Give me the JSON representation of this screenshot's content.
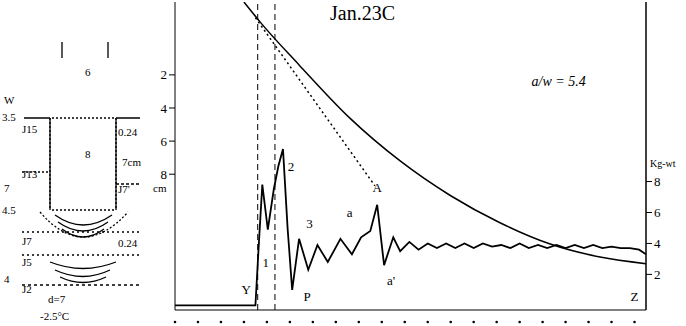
{
  "chart_data": {
    "type": "line",
    "title": "Jan.23C",
    "ylabel": "cm",
    "y2label": "Kg-wt",
    "xlim": [
      0,
      20.5
    ],
    "xticks": [
      0,
      1,
      2,
      3,
      4,
      5,
      6,
      7,
      8,
      9,
      10,
      11,
      12,
      13,
      14,
      15,
      16,
      17,
      18,
      19,
      20
    ],
    "ylim": [
      -2.4,
      16.2
    ],
    "yticks": [
      2,
      4,
      6,
      8
    ],
    "y2lim": [
      -0.3,
      19.6
    ],
    "y2ticks": [
      2,
      4,
      6,
      8
    ],
    "tick_labels": "y",
    "grid": false,
    "series": [
      {
        "axis": "y",
        "color": "#000000",
        "line_style": "solid",
        "x": [
          3.0,
          3.7,
          5.4,
          7.6,
          9.8,
          12.0,
          14.1,
          16.3,
          18.5,
          20.5
        ],
        "values": [
          -2.4,
          -1.2,
          1.4,
          4.6,
          7.2,
          9.3,
          10.9,
          12.2,
          13.0,
          13.4
        ]
      },
      {
        "axis": "y",
        "color": "#000000",
        "line_style": "dotted",
        "x": [
          3.5,
          8.7
        ],
        "values": [
          -1.45,
          8.7
        ]
      },
      {
        "axis": "y2",
        "color": "#000000",
        "line_style": "solid",
        "x": [
          0,
          3.5,
          3.65,
          3.8,
          4.04,
          4.3,
          4.5,
          4.7,
          4.9,
          5.1,
          5.4,
          5.8,
          6.2,
          6.65,
          7.2,
          7.7,
          8.1,
          8.5,
          8.8,
          9.1,
          9.5,
          9.8,
          10.2,
          10.6,
          11.0,
          11.4,
          11.8,
          12.2,
          12.6,
          13.0,
          13.4,
          13.8,
          14.2,
          14.6,
          15.0,
          15.4,
          15.8,
          16.2,
          16.6,
          17.0,
          17.4,
          17.8,
          18.2,
          18.6,
          19.0,
          19.4,
          19.8,
          20.2,
          20.5
        ],
        "values": [
          0,
          0,
          4.0,
          7.8,
          4.9,
          7.5,
          9.0,
          10.1,
          5.0,
          1.0,
          4.3,
          2.3,
          3.9,
          2.8,
          4.3,
          3.3,
          4.4,
          4.8,
          6.5,
          2.6,
          4.4,
          3.5,
          4.1,
          3.6,
          4.0,
          3.7,
          4.0,
          3.7,
          4.0,
          3.7,
          4.0,
          3.8,
          3.9,
          3.7,
          4.0,
          3.7,
          3.9,
          3.7,
          3.9,
          3.7,
          3.9,
          3.7,
          3.9,
          3.7,
          3.8,
          3.7,
          3.7,
          3.6,
          3.3
        ]
      }
    ],
    "reference_lines": [
      3.6,
      4.35
    ],
    "annotations": [
      {
        "text": "Y",
        "x": 3.1,
        "y": 1.0
      },
      {
        "text": "1",
        "x": 3.95,
        "y": 2.8
      },
      {
        "text": "2",
        "x": 5.05,
        "y": 9.0
      },
      {
        "text": "3",
        "x": 5.85,
        "y": 5.3
      },
      {
        "text": "P",
        "x": 5.75,
        "y": 0.6
      },
      {
        "text": "a",
        "x": 7.6,
        "y": 6.0
      },
      {
        "text": "A",
        "x": 8.8,
        "y": 7.6
      },
      {
        "text": "a'",
        "x": 9.4,
        "y": 1.6
      },
      {
        "text": "Z",
        "x": 20.0,
        "y": 0.6
      },
      {
        "text": "a/w = 5.4",
        "x": 16.7,
        "y": 14.5
      }
    ]
  },
  "diagram": {
    "labels": [
      "6",
      "W",
      "3.5",
      "J15",
      "8",
      "0.24",
      "7cm",
      "J13",
      "7",
      "J7'",
      "4.5",
      "J7",
      "0.24",
      "J5",
      "4",
      "J2",
      "d=7",
      "-2.5°C"
    ]
  }
}
